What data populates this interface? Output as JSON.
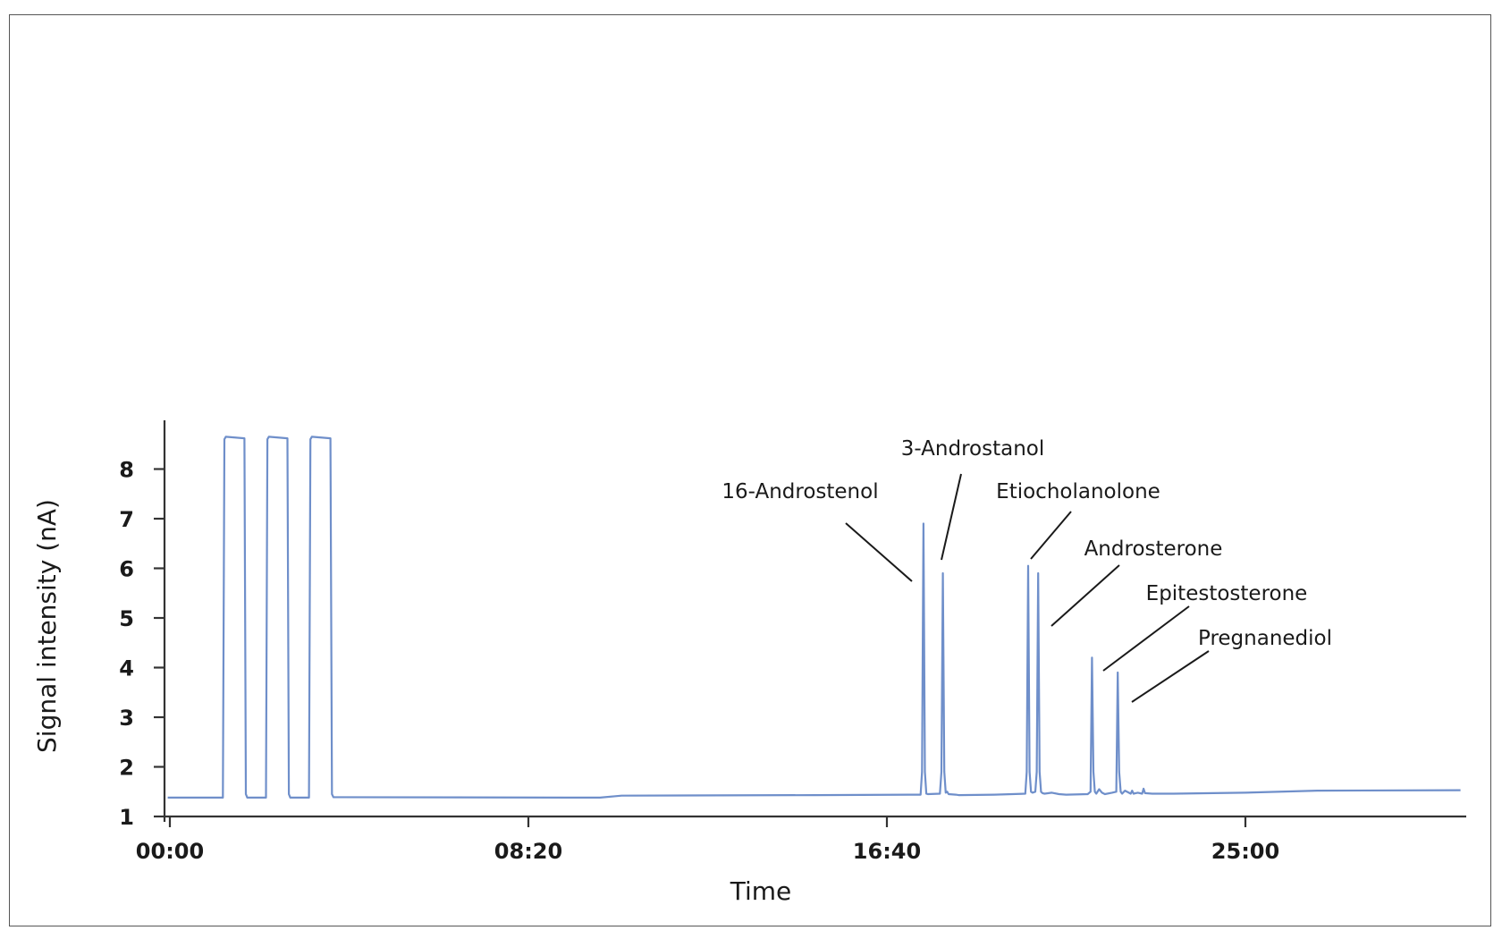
{
  "chart_data": {
    "type": "line",
    "title": "",
    "xlabel": "Time",
    "ylabel": "Signal intensity (nA)",
    "x_unit": "seconds",
    "xlim": [
      0,
      2400
    ],
    "ylim": [
      1,
      9
    ],
    "x_ticks": [
      {
        "value": 0,
        "label": "00:00"
      },
      {
        "value": 500,
        "label": "08:20"
      },
      {
        "value": 1000,
        "label": "16:40"
      },
      {
        "value": 1500,
        "label": "25:00"
      }
    ],
    "y_ticks": [
      1,
      2,
      3,
      4,
      5,
      6,
      7,
      8
    ],
    "grid": false,
    "color": "#6f8fca",
    "series": [
      {
        "x": [
          -3,
          74,
          76,
          78,
          104,
          106,
          108,
          134,
          136,
          138,
          164,
          166,
          168,
          194,
          196,
          198,
          224,
          226,
          228,
          600,
          630,
          900,
          1047,
          1049,
          1051,
          1053,
          1055,
          1057,
          1074,
          1076,
          1078,
          1080,
          1082,
          1084,
          1086,
          1096,
          1100,
          1150,
          1193,
          1195,
          1197,
          1199,
          1201,
          1203,
          1207,
          1209,
          1211,
          1213,
          1215,
          1217,
          1220,
          1230,
          1240,
          1250,
          1280,
          1284,
          1286,
          1288,
          1290,
          1292,
          1296,
          1300,
          1304,
          1314,
          1320,
          1322,
          1324,
          1326,
          1328,
          1332,
          1340,
          1342,
          1344,
          1350,
          1356,
          1358,
          1360,
          1370,
          1400,
          1500,
          1600,
          1800
        ],
        "y": [
          1.38,
          1.38,
          8.6,
          8.65,
          8.62,
          1.45,
          1.38,
          1.38,
          8.6,
          8.65,
          8.62,
          1.45,
          1.38,
          1.38,
          8.6,
          8.65,
          8.62,
          1.45,
          1.39,
          1.38,
          1.42,
          1.43,
          1.44,
          1.9,
          6.9,
          1.9,
          1.46,
          1.45,
          1.46,
          1.9,
          5.9,
          1.9,
          1.48,
          1.5,
          1.45,
          1.44,
          1.43,
          1.44,
          1.46,
          1.9,
          6.05,
          1.9,
          1.5,
          1.48,
          1.5,
          1.9,
          5.9,
          1.9,
          1.5,
          1.47,
          1.46,
          1.48,
          1.45,
          1.44,
          1.45,
          1.5,
          4.2,
          1.9,
          1.5,
          1.46,
          1.55,
          1.48,
          1.45,
          1.48,
          1.5,
          3.9,
          1.9,
          1.5,
          1.46,
          1.52,
          1.46,
          1.52,
          1.46,
          1.48,
          1.46,
          1.56,
          1.47,
          1.46,
          1.46,
          1.48,
          1.52,
          1.53
        ]
      }
    ],
    "annotations": [
      {
        "label": "16-Androstenol",
        "peak_x": 1051,
        "peak_y": 6.9
      },
      {
        "label": "3-Androstanol",
        "peak_x": 1078,
        "peak_y": 5.9
      },
      {
        "label": "Etiocholanolone",
        "peak_x": 1197,
        "peak_y": 6.05
      },
      {
        "label": "Androsterone",
        "peak_x": 1211,
        "peak_y": 5.9
      },
      {
        "label": "Epitestosterone",
        "peak_x": 1286,
        "peak_y": 4.2
      },
      {
        "label": "Pregnanediol",
        "peak_x": 1322,
        "peak_y": 3.9
      }
    ]
  }
}
